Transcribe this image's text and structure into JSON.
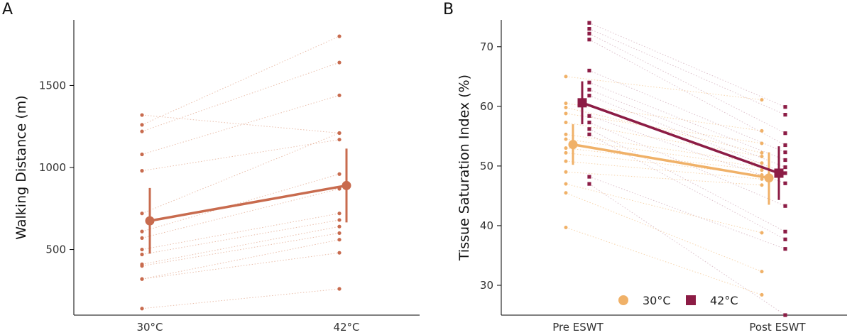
{
  "chart_data": [
    {
      "type": "line",
      "panel_label": "A",
      "title": "",
      "xlabel": "",
      "ylabel": "Walking Distance (m)",
      "categories": [
        "30°C",
        "42°C"
      ],
      "ylim": [
        100,
        1900
      ],
      "yticks": [
        500,
        1000,
        1500
      ],
      "colors": {
        "main": "#c86b4e",
        "faint": "#e2a98f"
      },
      "mean": {
        "values": [
          675,
          890
        ],
        "ci_low": [
          475,
          665
        ],
        "ci_high": [
          875,
          1115
        ]
      },
      "subjects": [
        [
          1320,
          1210
        ],
        [
          1260,
          1800
        ],
        [
          1220,
          1640
        ],
        [
          1080,
          1440
        ],
        [
          980,
          1170
        ],
        [
          720,
          1210
        ],
        [
          610,
          960
        ],
        [
          570,
          870
        ],
        [
          500,
          720
        ],
        [
          470,
          680
        ],
        [
          410,
          640
        ],
        [
          400,
          600
        ],
        [
          320,
          560
        ],
        [
          320,
          480
        ],
        [
          140,
          260
        ]
      ]
    },
    {
      "type": "line",
      "panel_label": "B",
      "title": "",
      "xlabel": "",
      "ylabel": "Tissue Saturation Index (%)",
      "categories": [
        "Pre ESWT",
        "Post ESWT"
      ],
      "ylim": [
        25,
        74.5
      ],
      "yticks": [
        30,
        40,
        50,
        60,
        70
      ],
      "legend": {
        "position": "bottom-center",
        "entries": [
          "30°C",
          "42°C"
        ]
      },
      "series": [
        {
          "name": "30°C",
          "color": "#f0b168",
          "marker": "circle",
          "mean": {
            "values": [
              53.6,
              48.0
            ],
            "ci_low": [
              50.2,
              43.5
            ],
            "ci_high": [
              57.0,
              52.3
            ]
          },
          "subjects": [
            [
              65.0,
              61.1
            ],
            [
              60.5,
              55.9
            ],
            [
              59.8,
              52.2
            ],
            [
              58.8,
              53.8
            ],
            [
              57.3,
              51.6
            ],
            [
              55.3,
              50.5
            ],
            [
              54.5,
              49.8
            ],
            [
              53.0,
              49.3
            ],
            [
              52.2,
              48.5
            ],
            [
              50.8,
              47.8
            ],
            [
              49.0,
              46.8
            ],
            [
              47.0,
              38.8
            ],
            [
              45.5,
              32.3
            ],
            [
              39.7,
              28.4
            ]
          ]
        },
        {
          "name": "42°C",
          "color": "#8c1c45",
          "marker": "square",
          "mean": {
            "values": [
              60.6,
              48.8
            ],
            "ci_low": [
              57.0,
              44.3
            ],
            "ci_high": [
              64.2,
              53.3
            ]
          },
          "subjects": [
            [
              74.0,
              59.9
            ],
            [
              73.0,
              58.6
            ],
            [
              72.2,
              55.5
            ],
            [
              71.2,
              53.5
            ],
            [
              66.0,
              52.3
            ],
            [
              64.0,
              51.0
            ],
            [
              62.8,
              49.8
            ],
            [
              61.8,
              48.8
            ],
            [
              58.4,
              47.1
            ],
            [
              57.3,
              43.3
            ],
            [
              56.2,
              39.0
            ],
            [
              55.3,
              37.7
            ],
            [
              48.2,
              36.1
            ],
            [
              47.0,
              25.0
            ]
          ]
        }
      ]
    }
  ]
}
